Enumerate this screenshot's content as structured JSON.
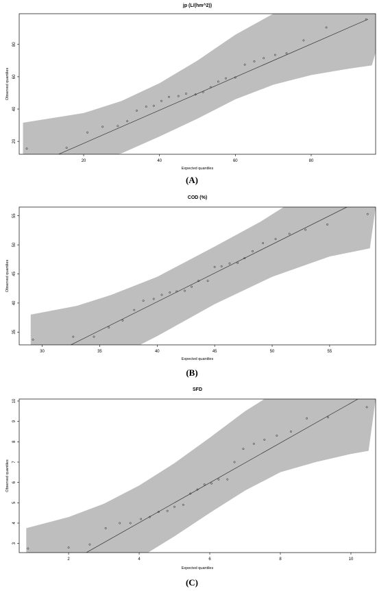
{
  "chart_data": [
    {
      "type": "scatter",
      "panel_label": "(A)",
      "title": "jp (L/(hm^2))",
      "xlabel": "Expected quantiles",
      "ylabel": "Observed quantiles",
      "xlim": [
        3,
        97
      ],
      "ylim": [
        12,
        99
      ],
      "xticks": [
        20,
        40,
        60,
        80
      ],
      "yticks": [
        20,
        40,
        60,
        80
      ],
      "points": [
        [
          5,
          15.5
        ],
        [
          15.5,
          16
        ],
        [
          21,
          25.5
        ],
        [
          25,
          29
        ],
        [
          29,
          29.5
        ],
        [
          31.5,
          32.5
        ],
        [
          34,
          39
        ],
        [
          36.5,
          41.5
        ],
        [
          38.5,
          42
        ],
        [
          40.5,
          45
        ],
        [
          42.5,
          47.5
        ],
        [
          45,
          48
        ],
        [
          47,
          49.5
        ],
        [
          49.5,
          49
        ],
        [
          51.5,
          50.5
        ],
        [
          53.5,
          53.5
        ],
        [
          55.5,
          57
        ],
        [
          57.5,
          59
        ],
        [
          60,
          59.5
        ],
        [
          62.5,
          67.5
        ],
        [
          65,
          69.5
        ],
        [
          67.5,
          71.5
        ],
        [
          70.5,
          73.5
        ],
        [
          73.5,
          74.5
        ],
        [
          78,
          82.5
        ],
        [
          84,
          90.5
        ],
        [
          94.5,
          95.5
        ]
      ],
      "reference_line": [
        [
          5,
          3.4
        ],
        [
          95,
          95.6
        ]
      ],
      "band_upper": [
        [
          4,
          31.5
        ],
        [
          20,
          37.5
        ],
        [
          30,
          45
        ],
        [
          40,
          56
        ],
        [
          50,
          70
        ],
        [
          60,
          86
        ],
        [
          70,
          99
        ],
        [
          100,
          99
        ]
      ],
      "band_lower": [
        [
          4,
          12
        ],
        [
          29,
          12
        ],
        [
          30,
          12.6
        ],
        [
          40,
          23
        ],
        [
          50,
          34
        ],
        [
          60,
          46
        ],
        [
          70,
          55
        ],
        [
          80,
          61
        ],
        [
          90,
          65
        ],
        [
          96,
          67
        ]
      ]
    },
    {
      "type": "scatter",
      "panel_label": "(B)",
      "title": "COD (%)",
      "xlabel": "Expected quantiles",
      "ylabel": "Observed quantiles",
      "xlim": [
        28,
        59
      ],
      "ylim": [
        32.8,
        56.5
      ],
      "xticks": [
        30,
        35,
        40,
        45,
        50,
        55
      ],
      "yticks": [
        35,
        40,
        45,
        50,
        55
      ],
      "ytick_labels": [
        "35",
        "40",
        "45",
        "50",
        "55"
      ],
      "points": [
        [
          29.2,
          33.7
        ],
        [
          32.7,
          34.2
        ],
        [
          34.5,
          34.2
        ],
        [
          35.8,
          35.8
        ],
        [
          37,
          37
        ],
        [
          38,
          38.8
        ],
        [
          38.8,
          40.4
        ],
        [
          39.7,
          40.7
        ],
        [
          40.4,
          41.4
        ],
        [
          41.1,
          41.8
        ],
        [
          41.7,
          42
        ],
        [
          42.4,
          42.1
        ],
        [
          43,
          42.8
        ],
        [
          43.6,
          43.8
        ],
        [
          44.4,
          43.8
        ],
        [
          45,
          46.2
        ],
        [
          45.6,
          46.3
        ],
        [
          46.3,
          46.8
        ],
        [
          47,
          46.9
        ],
        [
          47.6,
          47.7
        ],
        [
          48.3,
          48.9
        ],
        [
          49.2,
          50.3
        ],
        [
          50.3,
          51
        ],
        [
          51.5,
          51.9
        ],
        [
          52.9,
          52.6
        ],
        [
          54.8,
          53.5
        ],
        [
          58.3,
          55.3
        ]
      ],
      "reference_line": [
        [
          32.5,
          32.8
        ],
        [
          56.5,
          56.5
        ]
      ],
      "band_upper": [
        [
          29,
          38
        ],
        [
          33,
          39.5
        ],
        [
          36,
          41.4
        ],
        [
          40,
          44.5
        ],
        [
          45,
          49.7
        ],
        [
          49,
          54
        ],
        [
          51,
          56.5
        ],
        [
          59,
          56.5
        ]
      ],
      "band_lower": [
        [
          29,
          32.8
        ],
        [
          38.5,
          32.8
        ],
        [
          40,
          34.3
        ],
        [
          45,
          39.8
        ],
        [
          50,
          44.5
        ],
        [
          55,
          48
        ],
        [
          58.5,
          49.4
        ]
      ]
    },
    {
      "type": "scatter",
      "panel_label": "(C)",
      "title": "SFD",
      "xlabel": "Expected quantiles",
      "ylabel": "Observed quantiles",
      "xlim": [
        0.6,
        10.7
      ],
      "ylim": [
        2.55,
        10.1
      ],
      "xticks": [
        2,
        4,
        6,
        8,
        10
      ],
      "yticks": [
        3,
        4,
        5,
        6,
        7,
        8,
        9,
        10
      ],
      "points": [
        [
          0.85,
          2.75
        ],
        [
          2,
          2.8
        ],
        [
          2.6,
          2.95
        ],
        [
          3.05,
          3.75
        ],
        [
          3.45,
          4
        ],
        [
          3.75,
          4
        ],
        [
          4.05,
          4.2
        ],
        [
          4.3,
          4.3
        ],
        [
          4.55,
          4.55
        ],
        [
          4.8,
          4.6
        ],
        [
          5,
          4.8
        ],
        [
          5.25,
          4.9
        ],
        [
          5.45,
          5.45
        ],
        [
          5.65,
          5.65
        ],
        [
          5.85,
          5.9
        ],
        [
          6.05,
          5.95
        ],
        [
          6.25,
          6.15
        ],
        [
          6.5,
          6.15
        ],
        [
          6.7,
          7
        ],
        [
          6.95,
          7.65
        ],
        [
          7.25,
          7.9
        ],
        [
          7.55,
          8.1
        ],
        [
          7.9,
          8.3
        ],
        [
          8.3,
          8.5
        ],
        [
          8.75,
          9.15
        ],
        [
          9.35,
          9.2
        ],
        [
          10.45,
          9.7
        ]
      ],
      "reference_line": [
        [
          2.5,
          2.55
        ],
        [
          10.2,
          10.1
        ]
      ],
      "band_upper": [
        [
          0.8,
          3.75
        ],
        [
          2,
          4.3
        ],
        [
          3,
          4.95
        ],
        [
          4,
          5.85
        ],
        [
          5,
          6.95
        ],
        [
          6,
          8.2
        ],
        [
          7,
          9.5
        ],
        [
          7.55,
          10.1
        ],
        [
          10.7,
          10.1
        ]
      ],
      "band_lower": [
        [
          0.8,
          2.55
        ],
        [
          4.25,
          2.55
        ],
        [
          5,
          3.35
        ],
        [
          6,
          4.5
        ],
        [
          7,
          5.6
        ],
        [
          8,
          6.5
        ],
        [
          9,
          7
        ],
        [
          10,
          7.4
        ],
        [
          10.5,
          7.55
        ]
      ]
    }
  ]
}
